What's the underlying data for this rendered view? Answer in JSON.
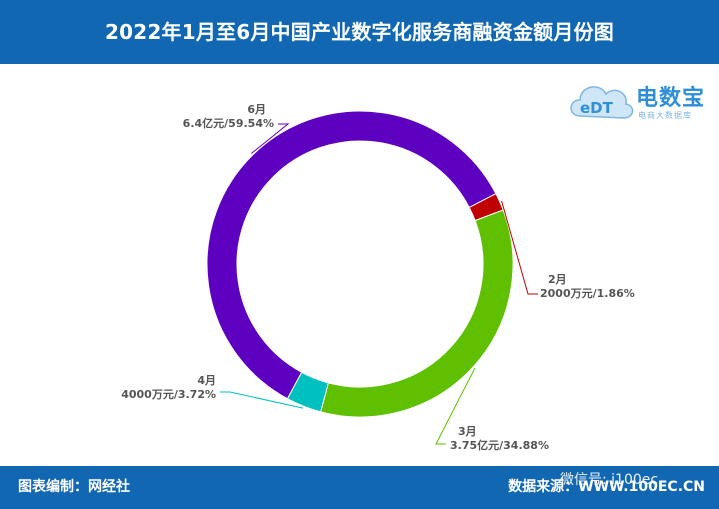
{
  "header": {
    "title": "2022年1月至6月中国产业数字化服务商融资金额月份图"
  },
  "footer": {
    "left": "图表编制：网经社",
    "right": "数据来源：WWW.100EC.CN"
  },
  "watermark": {
    "text": "微信号: i100ec"
  },
  "logo": {
    "main": "电数宝",
    "sub": "电商大数据库",
    "icon": "cloud-edt-logo-icon"
  },
  "colors": {
    "header_bg": "#1267b3",
    "jun": "#5e00c0",
    "feb": "#c00000",
    "mar": "#5ec000",
    "apr": "#00c0c0"
  },
  "chart_data": {
    "type": "pie",
    "title": "2022年1月至6月中国产业数字化服务商融资金额月份图",
    "series": [
      {
        "name": "6月",
        "value": 59.54,
        "label": "6.4亿元/59.54%",
        "color": "#5e00c0"
      },
      {
        "name": "2月",
        "value": 1.86,
        "label": "2000万元/1.86%",
        "color": "#c00000"
      },
      {
        "name": "3月",
        "value": 34.88,
        "label": "3.75亿元/34.88%",
        "color": "#5ec000"
      },
      {
        "name": "4月",
        "value": 3.72,
        "label": "4000万元/3.72%",
        "color": "#00c0c0"
      }
    ]
  }
}
